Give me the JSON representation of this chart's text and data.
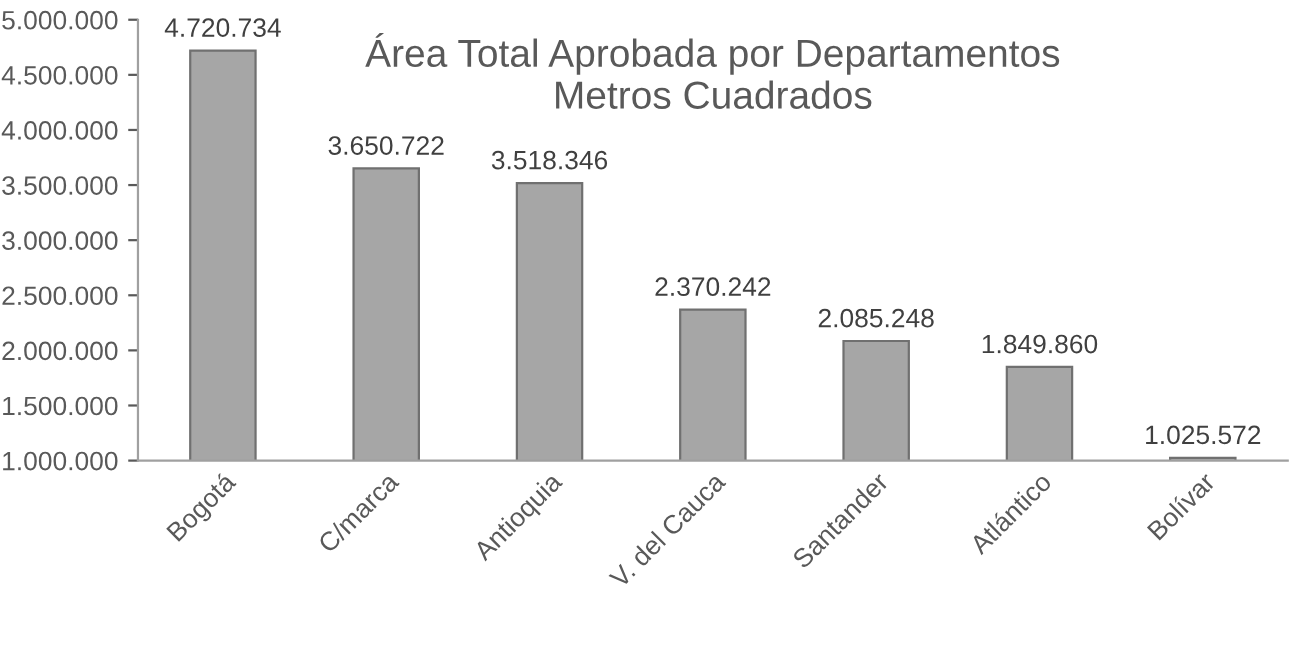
{
  "chart_data": {
    "type": "bar",
    "title": "Área Total Aprobada por Departamentos\nMetros Cuadrados",
    "categories": [
      "Bogotá",
      "C/marca",
      "Antioquia",
      "V. del Cauca",
      "Santander",
      "Atlántico",
      "Bolívar"
    ],
    "values": [
      4720734,
      3650722,
      3518346,
      2370242,
      2085248,
      1849860,
      1025572
    ],
    "value_labels": [
      "4.720.734",
      "3.650.722",
      "3.518.346",
      "2.370.242",
      "2.085.248",
      "1.849.860",
      "1.025.572"
    ],
    "color": "#a6a6a6",
    "ylim": [
      1000000,
      5000000
    ],
    "yticks": [
      {
        "value": 1000000,
        "label": "1.000.000"
      },
      {
        "value": 1500000,
        "label": "1.500.000"
      },
      {
        "value": 2000000,
        "label": "2.000.000"
      },
      {
        "value": 2500000,
        "label": "2.500.000"
      },
      {
        "value": 3000000,
        "label": "3.000.000"
      },
      {
        "value": 3500000,
        "label": "3.500.000"
      },
      {
        "value": 4000000,
        "label": "4.000.000"
      },
      {
        "value": 4500000,
        "label": "4.500.000"
      },
      {
        "value": 5000000,
        "label": "5.000.000"
      }
    ],
    "grid": false,
    "legend": false
  }
}
